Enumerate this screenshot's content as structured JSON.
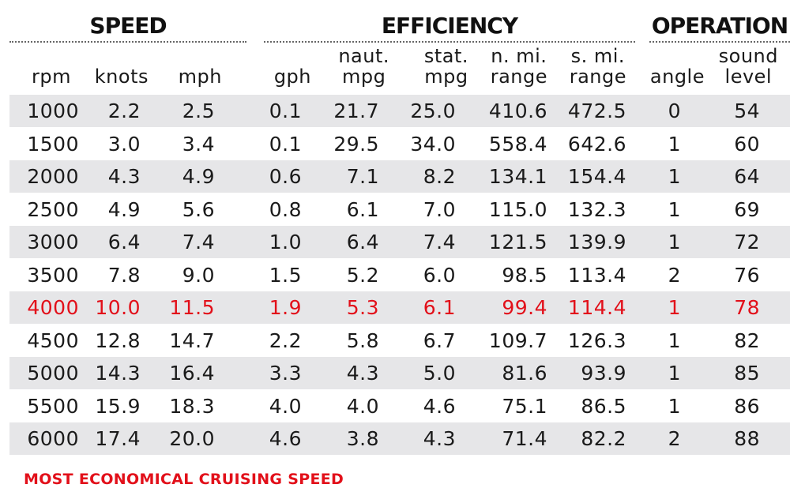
{
  "groups": {
    "speed": "SPEED",
    "efficiency": "EFFICIENCY",
    "operation": "OPERATION"
  },
  "columns": {
    "rpm": [
      "rpm"
    ],
    "knots": [
      "knots"
    ],
    "mph": [
      "mph"
    ],
    "gph": [
      "gph"
    ],
    "naut_mpg": [
      "naut.",
      "mpg"
    ],
    "stat_mpg": [
      "stat.",
      "mpg"
    ],
    "n_range": [
      "n. mi.",
      "range"
    ],
    "s_range": [
      "s. mi.",
      "range"
    ],
    "angle": [
      "angle"
    ],
    "sound": [
      "sound",
      "level"
    ]
  },
  "rows": [
    [
      "1000",
      "2.2",
      "2.5",
      "0.1",
      "21.7",
      "25.0",
      "410.6",
      "472.5",
      "0",
      "54"
    ],
    [
      "1500",
      "3.0",
      "3.4",
      "0.1",
      "29.5",
      "34.0",
      "558.4",
      "642.6",
      "1",
      "60"
    ],
    [
      "2000",
      "4.3",
      "4.9",
      "0.6",
      "7.1",
      "8.2",
      "134.1",
      "154.4",
      "1",
      "64"
    ],
    [
      "2500",
      "4.9",
      "5.6",
      "0.8",
      "6.1",
      "7.0",
      "115.0",
      "132.3",
      "1",
      "69"
    ],
    [
      "3000",
      "6.4",
      "7.4",
      "1.0",
      "6.4",
      "7.4",
      "121.5",
      "139.9",
      "1",
      "72"
    ],
    [
      "3500",
      "7.8",
      "9.0",
      "1.5",
      "5.2",
      "6.0",
      "98.5",
      "113.4",
      "2",
      "76"
    ],
    [
      "4000",
      "10.0",
      "11.5",
      "1.9",
      "5.3",
      "6.1",
      "99.4",
      "114.4",
      "1",
      "78"
    ],
    [
      "4500",
      "12.8",
      "14.7",
      "2.2",
      "5.8",
      "6.7",
      "109.7",
      "126.3",
      "1",
      "82"
    ],
    [
      "5000",
      "14.3",
      "16.4",
      "3.3",
      "4.3",
      "5.0",
      "81.6",
      "93.9",
      "1",
      "85"
    ],
    [
      "5500",
      "15.9",
      "18.3",
      "4.0",
      "4.0",
      "4.6",
      "75.1",
      "86.5",
      "1",
      "86"
    ],
    [
      "6000",
      "17.4",
      "20.0",
      "4.6",
      "3.8",
      "4.3",
      "71.4",
      "82.2",
      "2",
      "88"
    ]
  ],
  "highlight_row_index": 6,
  "highlight_color": "#e2101a",
  "row_shade_color": "#e6e6e8",
  "footnote": "MOST ECONOMICAL CRUISING SPEED"
}
